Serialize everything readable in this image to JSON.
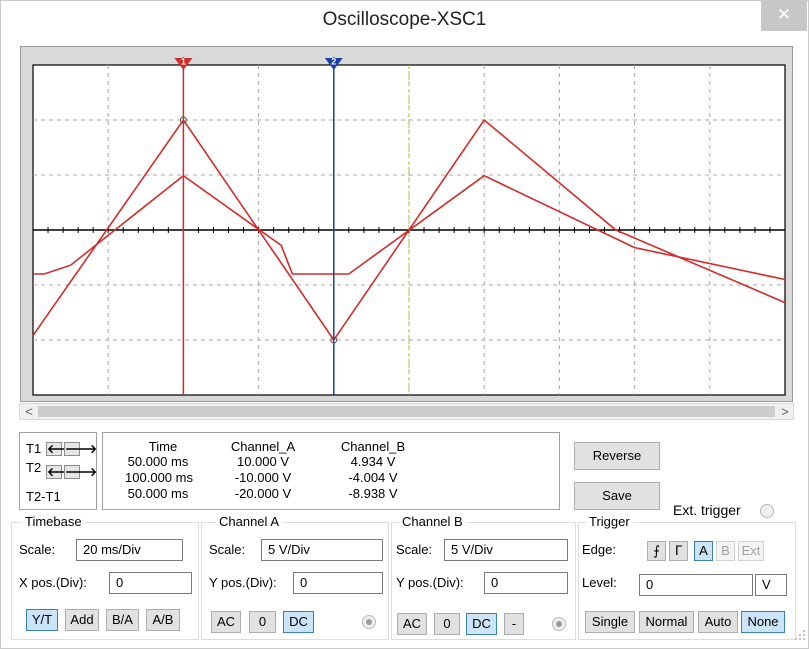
{
  "window": {
    "title": "Oscilloscope-XSC1",
    "close_glyph": "✕"
  },
  "screen": {
    "background": "#d9d9d9",
    "trace_color": "#d42a2a",
    "cursor1_color": "#d42a2a",
    "cursor2_color": "#1b3fa8",
    "cursor1_label": "1",
    "cursor2_label": "2",
    "divisions_x": 10,
    "divisions_y": 6,
    "channel_a": {
      "scale_v_per_div": 5,
      "peak_v": 10,
      "trough_v": -10
    },
    "channel_b": {
      "scale_v_per_div": 5,
      "peak_v": 4.934,
      "trough_v": -4.004
    }
  },
  "scrollbar": {
    "left_arrow": "<",
    "right_arrow": ">"
  },
  "cursors": {
    "t1_label": "T1",
    "t2_label": "T2",
    "diff_label": "T2-T1",
    "left_icon": "arrow-left-icon",
    "right_icon": "arrow-right-icon",
    "left_glyph": "🡐",
    "right_glyph": "🡒"
  },
  "readout": {
    "headers": [
      "Time",
      "Channel_A",
      "Channel_B"
    ],
    "rows": [
      [
        "50.000 ms",
        "10.000 V",
        "4.934 V"
      ],
      [
        "100.000 ms",
        "-10.000 V",
        "-4.004 V"
      ],
      [
        "50.000 ms",
        "-20.000 V",
        "-8.938 V"
      ]
    ]
  },
  "buttons": {
    "reverse": "Reverse",
    "save": "Save",
    "ext_trigger": "Ext. trigger"
  },
  "timebase": {
    "title": "Timebase",
    "scale_label": "Scale:",
    "scale_value": "20 ms/Div",
    "pos_label": "X pos.(Div):",
    "pos_value": "0",
    "modes": [
      "Y/T",
      "Add",
      "B/A",
      "A/B"
    ],
    "active_mode": "Y/T"
  },
  "channel_a": {
    "title": "Channel A",
    "scale_label": "Scale:",
    "scale_value": "5 V/Div",
    "pos_label": "Y pos.(Div):",
    "pos_value": "0",
    "couplings": [
      "AC",
      "0",
      "DC"
    ],
    "active_coupling": "DC"
  },
  "channel_b": {
    "title": "Channel B",
    "scale_label": "Scale:",
    "scale_value": "5 V/Div",
    "pos_label": "Y pos.(Div):",
    "pos_value": "0",
    "couplings": [
      "AC",
      "0",
      "DC",
      "-"
    ],
    "active_coupling": "DC"
  },
  "trigger": {
    "title": "Trigger",
    "edge_label": "Edge:",
    "edge_rise_glyph": "⨍",
    "edge_fall_glyph": "ᒥ",
    "sources": [
      "A",
      "B",
      "Ext"
    ],
    "active_source": "A",
    "level_label": "Level:",
    "level_value": "0",
    "level_unit": "V",
    "modes": [
      "Single",
      "Normal",
      "Auto",
      "None"
    ],
    "active_mode": "None"
  }
}
